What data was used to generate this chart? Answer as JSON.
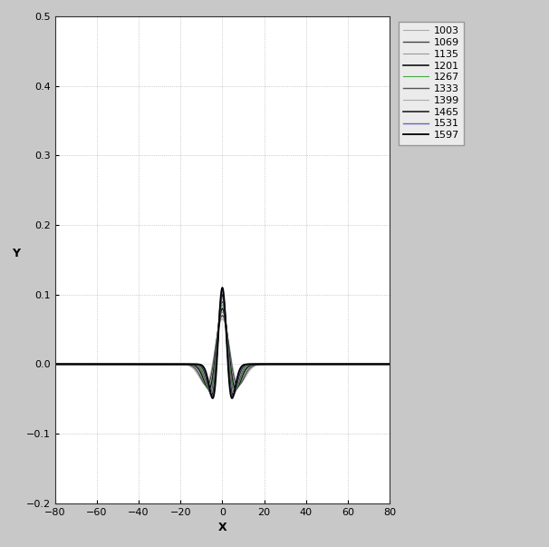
{
  "frequencies": [
    1003,
    1069,
    1135,
    1201,
    1267,
    1333,
    1399,
    1465,
    1531,
    1597
  ],
  "line_colors": {
    "1003": "#aaaaaa",
    "1069": "#444444",
    "1135": "#999999",
    "1201": "#111111",
    "1267": "#44aa44",
    "1333": "#555555",
    "1399": "#aaaaaa",
    "1465": "#222222",
    "1531": "#6666bb",
    "1597": "#000000"
  },
  "line_widths": {
    "1003": 0.8,
    "1069": 1.0,
    "1135": 0.8,
    "1201": 1.2,
    "1267": 0.8,
    "1333": 1.0,
    "1399": 0.8,
    "1465": 1.2,
    "1531": 1.0,
    "1597": 1.3
  },
  "freq_scale": {
    "1003": 0.048,
    "1069": 0.052,
    "1135": 0.056,
    "1201": 0.06,
    "1267": 0.064,
    "1333": 0.068,
    "1399": 0.072,
    "1465": 0.076,
    "1531": 0.08,
    "1597": 0.084
  },
  "amplitude_scale": {
    "1003": 0.065,
    "1069": 0.07,
    "1135": 0.075,
    "1201": 0.08,
    "1267": 0.085,
    "1333": 0.09,
    "1399": 0.095,
    "1465": 0.1,
    "1531": 0.105,
    "1597": 0.11
  },
  "xlim": [
    -80,
    80
  ],
  "ylim": [
    -0.2,
    0.5
  ],
  "xlabel": "X",
  "ylabel": "Y",
  "xticks": [
    -80,
    -60,
    -40,
    -20,
    0,
    20,
    40,
    60,
    80
  ],
  "yticks": [
    -0.2,
    -0.1,
    0.0,
    0.1,
    0.2,
    0.3,
    0.4,
    0.5
  ],
  "grid_color": "#aaaaaa",
  "bg_color": "#c8c8c8",
  "plot_bg_color": "#ffffff",
  "legend_bg": "#f0f0f0"
}
